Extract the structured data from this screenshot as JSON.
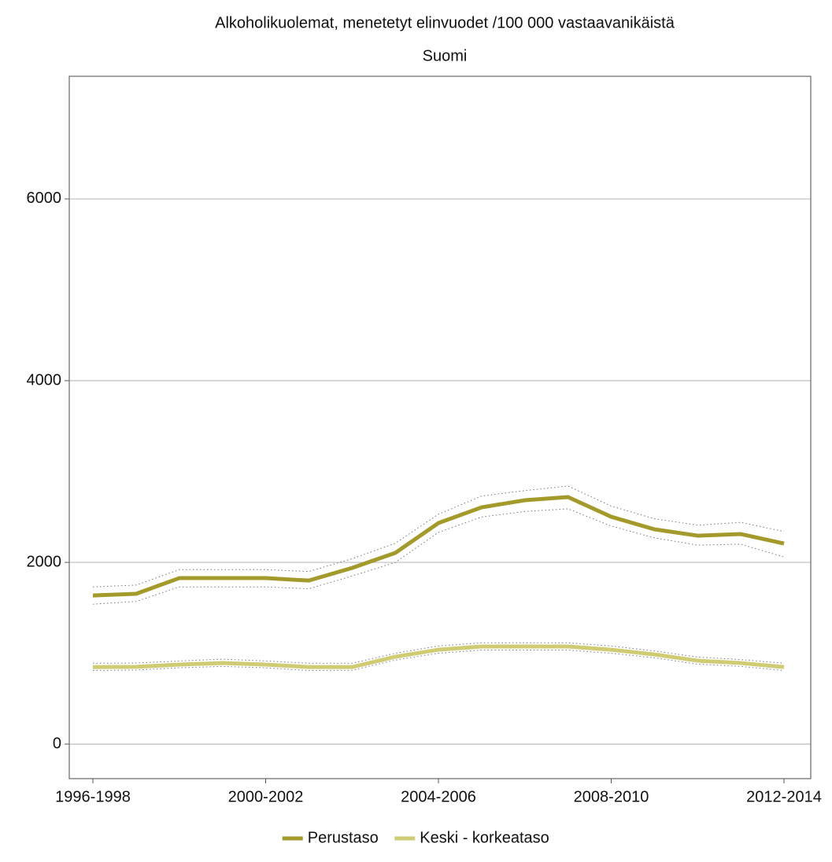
{
  "chart_data": {
    "type": "line",
    "title": "Alkoholikuolemat, menetetyt elinvuodet /100 000 vastaavanikäistä",
    "subtitle": "Suomi",
    "categories": [
      "1996-1998",
      null,
      null,
      null,
      "2000-2002",
      null,
      null,
      null,
      "2004-2006",
      null,
      null,
      null,
      "2008-2010",
      null,
      null,
      null,
      "2012-2014"
    ],
    "series": [
      {
        "name": "Perustaso",
        "color": "#a39a2b",
        "values": [
          1636,
          1654,
          1827,
          1827,
          1827,
          1800,
          1939,
          2104,
          2433,
          2606,
          2684,
          2719,
          2502,
          2364,
          2294,
          2312,
          2208
        ],
        "ci_low": [
          1540,
          1570,
          1730,
          1730,
          1730,
          1710,
          1850,
          2000,
          2330,
          2500,
          2560,
          2590,
          2400,
          2270,
          2190,
          2200,
          2060
        ],
        "ci_high": [
          1730,
          1750,
          1920,
          1920,
          1920,
          1900,
          2040,
          2210,
          2530,
          2730,
          2790,
          2840,
          2620,
          2480,
          2410,
          2440,
          2340
        ]
      },
      {
        "name": "Keski - korkeataso",
        "color": "#cfcc74",
        "values": [
          848,
          850,
          875,
          892,
          875,
          848,
          848,
          961,
          1039,
          1074,
          1074,
          1074,
          1039,
          987,
          918,
          892,
          848
        ],
        "ci_low": [
          810,
          815,
          840,
          855,
          840,
          810,
          812,
          925,
          1000,
          1035,
          1035,
          1035,
          1000,
          950,
          880,
          855,
          810
        ],
        "ci_high": [
          890,
          892,
          915,
          935,
          915,
          890,
          890,
          1000,
          1080,
          1115,
          1115,
          1115,
          1080,
          1025,
          958,
          930,
          890
        ]
      }
    ],
    "ylim": [
      -380,
      7350
    ],
    "yticks": [
      0,
      2000,
      4000,
      6000
    ],
    "grid": true,
    "legend": "bottom"
  }
}
